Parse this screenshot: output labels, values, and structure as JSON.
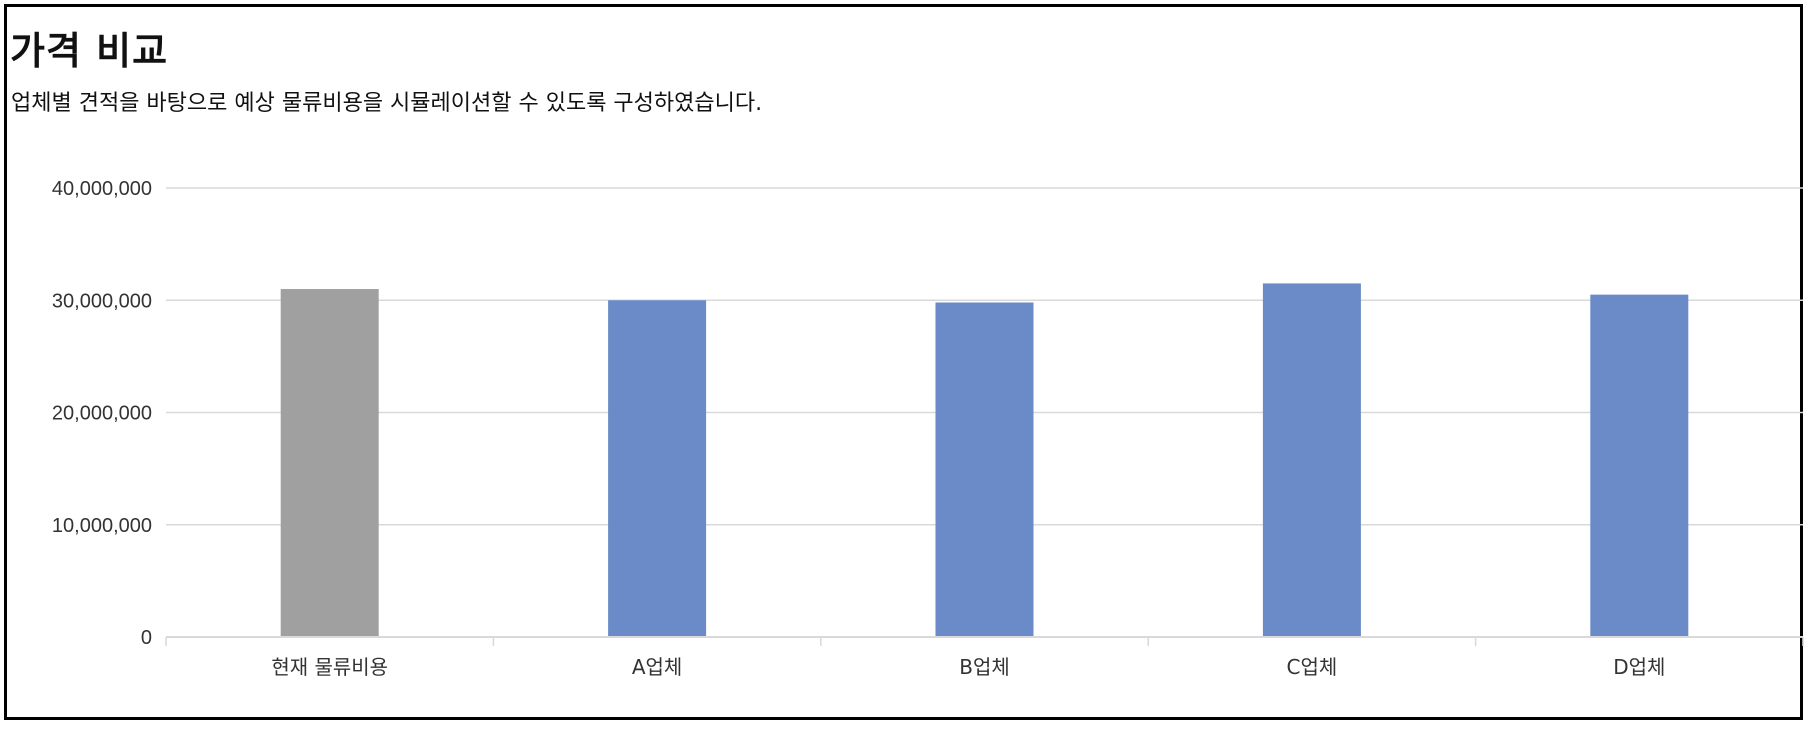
{
  "page": {
    "title": "가격 비교",
    "subtitle": "업체별 견적을 바탕으로 예상 물류비용을 시뮬레이션할 수 있도록 구성하였습니다."
  },
  "colors": {
    "current_bar": "#a0a0a0",
    "vendor_bar": "#6a8bc7",
    "gridline": "#d9d9d9",
    "axis_text": "#333333",
    "frame": "#000000"
  },
  "chart_data": {
    "type": "bar",
    "title": "",
    "xlabel": "",
    "ylabel": "",
    "categories": [
      "현재 물류비용",
      "A업체",
      "B업체",
      "C업체",
      "D업체"
    ],
    "values": [
      31000000,
      30000000,
      29800000,
      31500000,
      30500000
    ],
    "bar_colors": [
      "#a0a0a0",
      "#6a8bc7",
      "#6a8bc7",
      "#6a8bc7",
      "#6a8bc7"
    ],
    "ylim": [
      0,
      40000000
    ],
    "yticks": [
      0,
      10000000,
      20000000,
      30000000,
      40000000
    ],
    "ytick_labels": [
      "0",
      "10,000,000",
      "20,000,000",
      "30,000,000",
      "40,000,000"
    ],
    "grid": true,
    "legend": "none"
  }
}
